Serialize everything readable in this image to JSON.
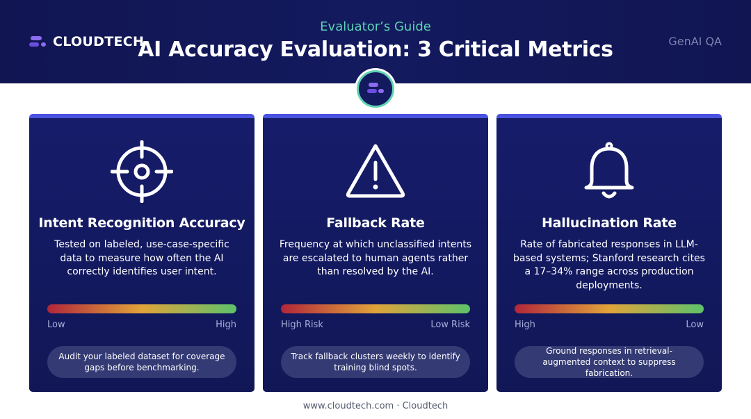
{
  "header": {
    "brand": "CLOUDTECH",
    "kicker": "Evaluator’s Guide",
    "title": "AI Accuracy Evaluation: 3 Critical Metrics",
    "tag": "GenAI QA"
  },
  "cards": [
    {
      "icon": "crosshair-target-icon",
      "title": "Intent Recognition Accuracy",
      "description": "Tested on labeled, use-case-specific data to measure how often the AI correctly identifies user intent.",
      "gauge_left": "Low",
      "gauge_right": "High",
      "tip": "Audit your labeled dataset for coverage gaps before benchmarking."
    },
    {
      "icon": "warning-triangle-icon",
      "title": "Fallback Rate",
      "description": "Frequency at which unclassified intents are escalated to human agents rather than resolved by the AI.",
      "gauge_left": "High Risk",
      "gauge_right": "Low Risk",
      "tip": "Track fallback clusters weekly to identify training blind spots."
    },
    {
      "icon": "bell-icon",
      "title": "Hallucination Rate",
      "description": "Rate of fabricated responses in LLM-based systems; Stanford research cites a 17–34% range across production deployments.",
      "gauge_left": "High",
      "gauge_right": "Low",
      "tip": "Ground responses in retrieval-augmented context to suppress fabrication."
    }
  ],
  "footer": "www.cloudtech.com · Cloudtech",
  "colors": {
    "header_bg": "#111552",
    "accent_teal": "#5fd3b4",
    "card_bg": "#161c6a",
    "card_border": "#4a53e0",
    "gauge_red": "#b2263a",
    "gauge_amber": "#e0a43a",
    "gauge_green": "#5ec26a"
  }
}
